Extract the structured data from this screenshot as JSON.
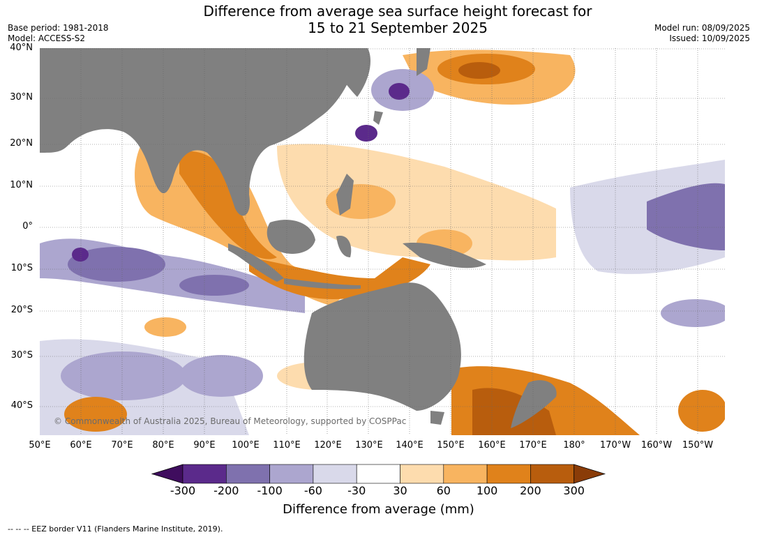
{
  "header": {
    "title_line1": "Difference from average sea surface height forecast for",
    "title_line2": "15 to 21 September 2025",
    "base_period": "Base period: 1981-2018",
    "model": "Model: ACCESS-S2",
    "model_run": "Model run: 08/09/2025",
    "issued": "Issued: 10/09/2025"
  },
  "map": {
    "lat_labels": [
      "40°N",
      "30°N",
      "20°N",
      "10°N",
      "0°",
      "10°S",
      "20°S",
      "30°S",
      "40°S"
    ],
    "lon_labels": [
      "50°E",
      "60°E",
      "70°E",
      "80°E",
      "90°E",
      "100°E",
      "110°E",
      "120°E",
      "130°E",
      "140°E",
      "150°E",
      "160°E",
      "170°E",
      "180°",
      "170°W",
      "160°W",
      "150°W"
    ],
    "copyright": "© Commonwealth of Australia 2025, Bureau of Meteorology, supported by COSPPac",
    "land_color": "#808080"
  },
  "colorbar": {
    "ticks": [
      "-300",
      "-200",
      "-100",
      "-60",
      "-30",
      "30",
      "60",
      "100",
      "200",
      "300"
    ],
    "colors": [
      "#3f0d5e",
      "#5b2a8b",
      "#7f71ae",
      "#aca6cf",
      "#d9d9ea",
      "#ffffff",
      "#fddcae",
      "#f8b460",
      "#e0821b",
      "#b85d0d",
      "#8a3c08"
    ],
    "label": "Difference from average (mm)"
  },
  "footnote": "-- -- -- EEZ border V11 (Flanders Marine Institute, 2019)."
}
